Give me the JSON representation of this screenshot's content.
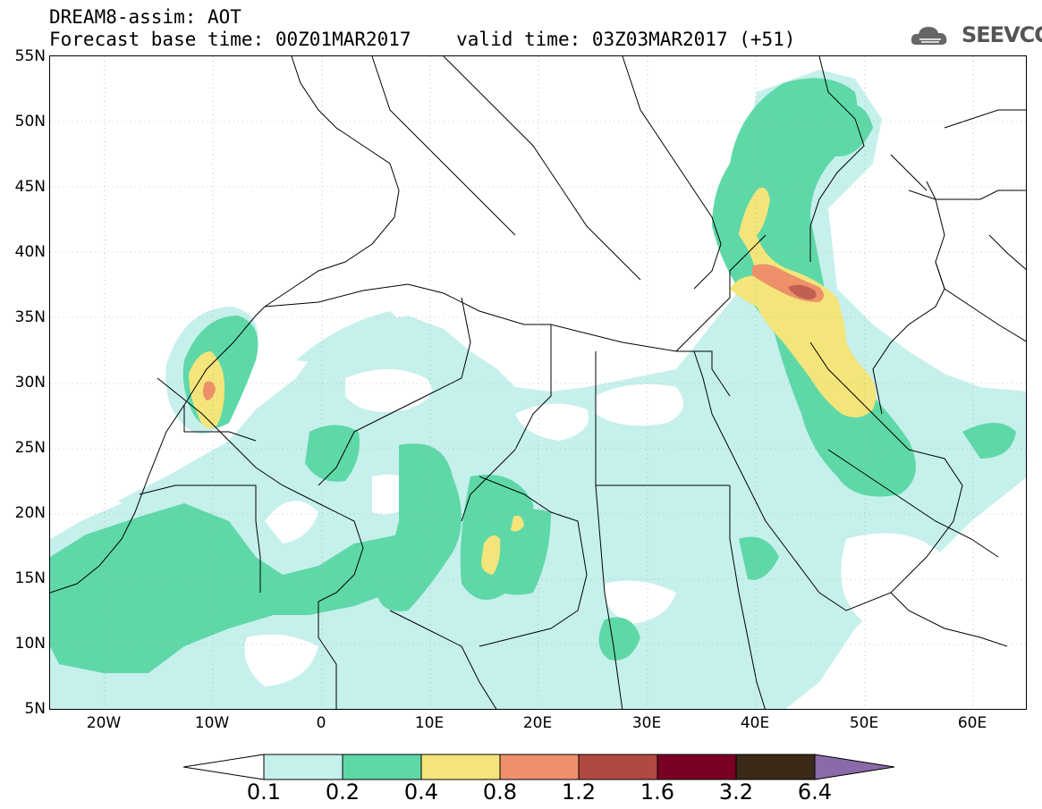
{
  "header": {
    "line1": "DREAM8-assim: AOT",
    "line2": "Forecast base time: 00Z01MAR2017    valid time: 03Z03MAR2017 (+51)"
  },
  "logo": {
    "text": "SEEVCCC",
    "icon": "cloud-icon"
  },
  "map": {
    "lat_range": [
      5,
      55
    ],
    "lon_range": [
      -25,
      65
    ],
    "lat_labels": [
      "55N",
      "50N",
      "45N",
      "40N",
      "35N",
      "30N",
      "25N",
      "20N",
      "15N",
      "10N",
      "5N"
    ],
    "lon_labels": [
      "20W",
      "10W",
      "0",
      "10E",
      "20E",
      "30E",
      "40E",
      "50E",
      "60E"
    ],
    "grid": true,
    "field_colors": {
      "0.1": "#c6f0ec",
      "0.2": "#5fd8a8",
      "0.4": "#f4e57a",
      "0.8": "#ee906a",
      "1.2": "#b04a40"
    }
  },
  "colorbar": {
    "labels": [
      "0.1",
      "0.2",
      "0.4",
      "0.8",
      "1.2",
      "1.6",
      "3.2",
      "6.4"
    ],
    "colors": [
      "#ffffff",
      "#c6f0ec",
      "#5fd8a8",
      "#f4e57a",
      "#ee906a",
      "#b04a40",
      "#7a0024",
      "#3b2a18",
      "#8a6aa8"
    ]
  }
}
